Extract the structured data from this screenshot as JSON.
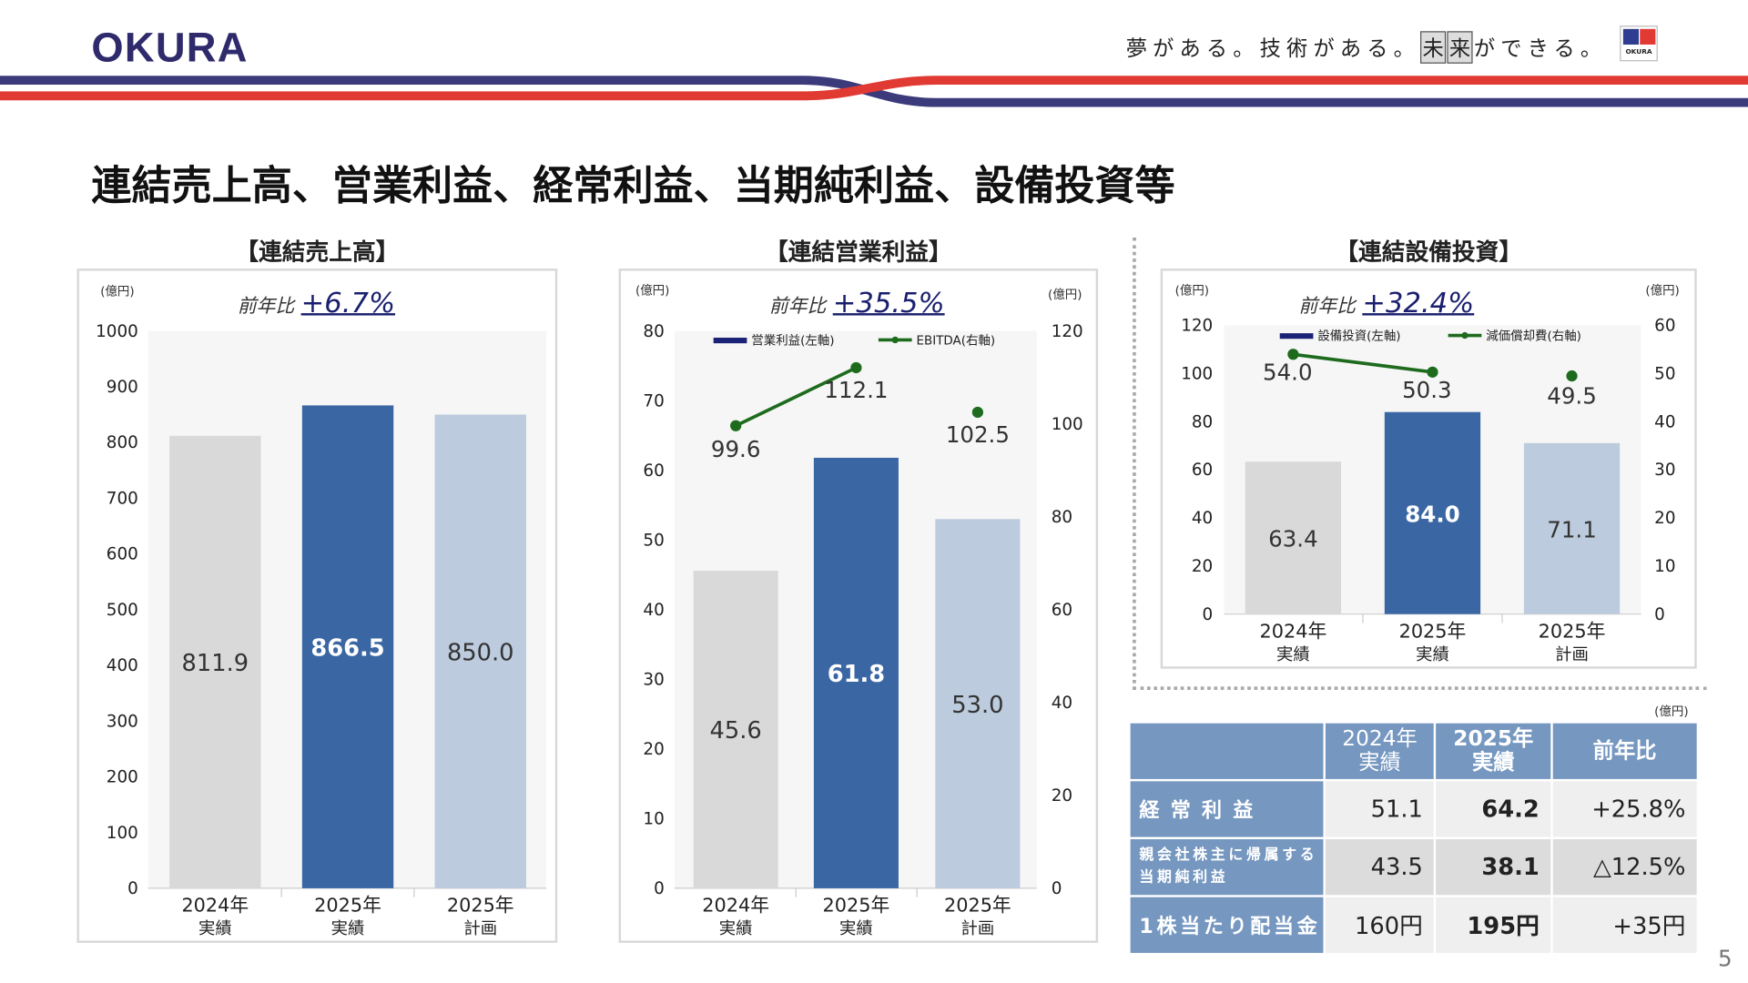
{
  "header": {
    "logo": "OKURA",
    "slogan_parts": [
      "夢がある。技術がある。",
      "未",
      "来",
      "ができる。"
    ],
    "corner_logo_text": "OKURA",
    "colors": {
      "navy": "#3b3a7a",
      "red": "#e03a33"
    }
  },
  "page_title": "連結売上高、営業利益、経常利益、当期純利益、設備投資等",
  "page_number": "5",
  "charts": {
    "sales": {
      "title": "【連結売上高】",
      "unit_left": "(億円)",
      "yoy_label": "前年比",
      "yoy_value": "+6.7%"
    },
    "op": {
      "title": "【連結営業利益】",
      "unit_left": "(億円)",
      "unit_right": "(億円)",
      "yoy_label": "前年比",
      "yoy_value": "+35.5%",
      "legend_bar": "営業利益(左軸)",
      "legend_line": "EBITDA(右軸)"
    },
    "capex": {
      "title": "【連結設備投資】",
      "unit_left": "(億円)",
      "unit_right": "(億円)",
      "yoy_label": "前年比",
      "yoy_value": "+32.4%",
      "legend_bar": "設備投資(左軸)",
      "legend_line": "減価償却費(右軸)"
    }
  },
  "chart_data": [
    {
      "type": "bar",
      "title": "【連結売上高】",
      "categories": [
        "2024年\n実績",
        "2025年\n実績",
        "2025年\n計画"
      ],
      "values": [
        811.9,
        866.5,
        850.0
      ],
      "labels": [
        "811.9",
        "866.5",
        "850.0"
      ],
      "ylim": [
        0,
        1000
      ],
      "yticks": [
        0,
        100,
        200,
        300,
        400,
        500,
        600,
        700,
        800,
        900,
        1000
      ],
      "ylabel": "(億円)",
      "colors": [
        "#d9d9d9",
        "#3a67a3",
        "#bccbdd"
      ]
    },
    {
      "type": "bar+line",
      "title": "【連結営業利益】",
      "categories": [
        "2024年\n実績",
        "2025年\n実績",
        "2025年\n計画"
      ],
      "series": [
        {
          "name": "営業利益(左軸)",
          "values": [
            45.6,
            61.8,
            53.0
          ],
          "labels": [
            "45.6",
            "61.8",
            "53.0"
          ]
        },
        {
          "name": "EBITDA(右軸)",
          "values": [
            99.6,
            112.1,
            102.5
          ],
          "labels": [
            "99.6",
            "112.1",
            "102.5"
          ],
          "axis": "right"
        }
      ],
      "ylim": [
        0,
        80
      ],
      "yticks": [
        0,
        10,
        20,
        30,
        40,
        50,
        60,
        70,
        80
      ],
      "y2lim": [
        0,
        120
      ],
      "y2ticks": [
        0,
        20,
        40,
        60,
        80,
        100,
        120
      ],
      "ylabel": "(億円)",
      "y2label": "(億円)",
      "colors": [
        "#d9d9d9",
        "#3a67a3",
        "#bccbdd"
      ],
      "line_color": "#1e6b1e",
      "legend": "top"
    },
    {
      "type": "bar+line",
      "title": "【連結設備投資】",
      "categories": [
        "2024年\n実績",
        "2025年\n実績",
        "2025年\n計画"
      ],
      "series": [
        {
          "name": "設備投資(左軸)",
          "values": [
            63.4,
            84.0,
            71.1
          ],
          "labels": [
            "63.4",
            "84.0",
            "71.1"
          ]
        },
        {
          "name": "減価償却費(右軸)",
          "values": [
            54.0,
            50.3,
            49.5
          ],
          "labels": [
            "54.0",
            "50.3",
            "49.5"
          ],
          "axis": "right"
        }
      ],
      "ylim": [
        0,
        120
      ],
      "yticks": [
        0,
        20,
        40,
        60,
        80,
        100,
        120
      ],
      "y2lim": [
        0,
        60
      ],
      "y2ticks": [
        0,
        10,
        20,
        30,
        40,
        50,
        60
      ],
      "ylabel": "(億円)",
      "y2label": "(億円)",
      "colors": [
        "#d9d9d9",
        "#3a67a3",
        "#bccbdd"
      ],
      "line_color": "#1e6b1e",
      "legend": "top"
    }
  ],
  "table": {
    "unit": "(億円)",
    "headers": [
      "",
      "2024年\n実績",
      "2025年\n実績",
      "前年比"
    ],
    "rows": [
      {
        "label": "経常利益",
        "values": [
          "51.1",
          "64.2",
          "+25.8%"
        ]
      },
      {
        "label": "親会社株主に帰属する\n当期純利益",
        "values": [
          "43.5",
          "38.1",
          "△12.5%"
        ]
      },
      {
        "label": "1株当たり配当金",
        "values": [
          "160円",
          "195円",
          "+35円"
        ]
      }
    ]
  }
}
